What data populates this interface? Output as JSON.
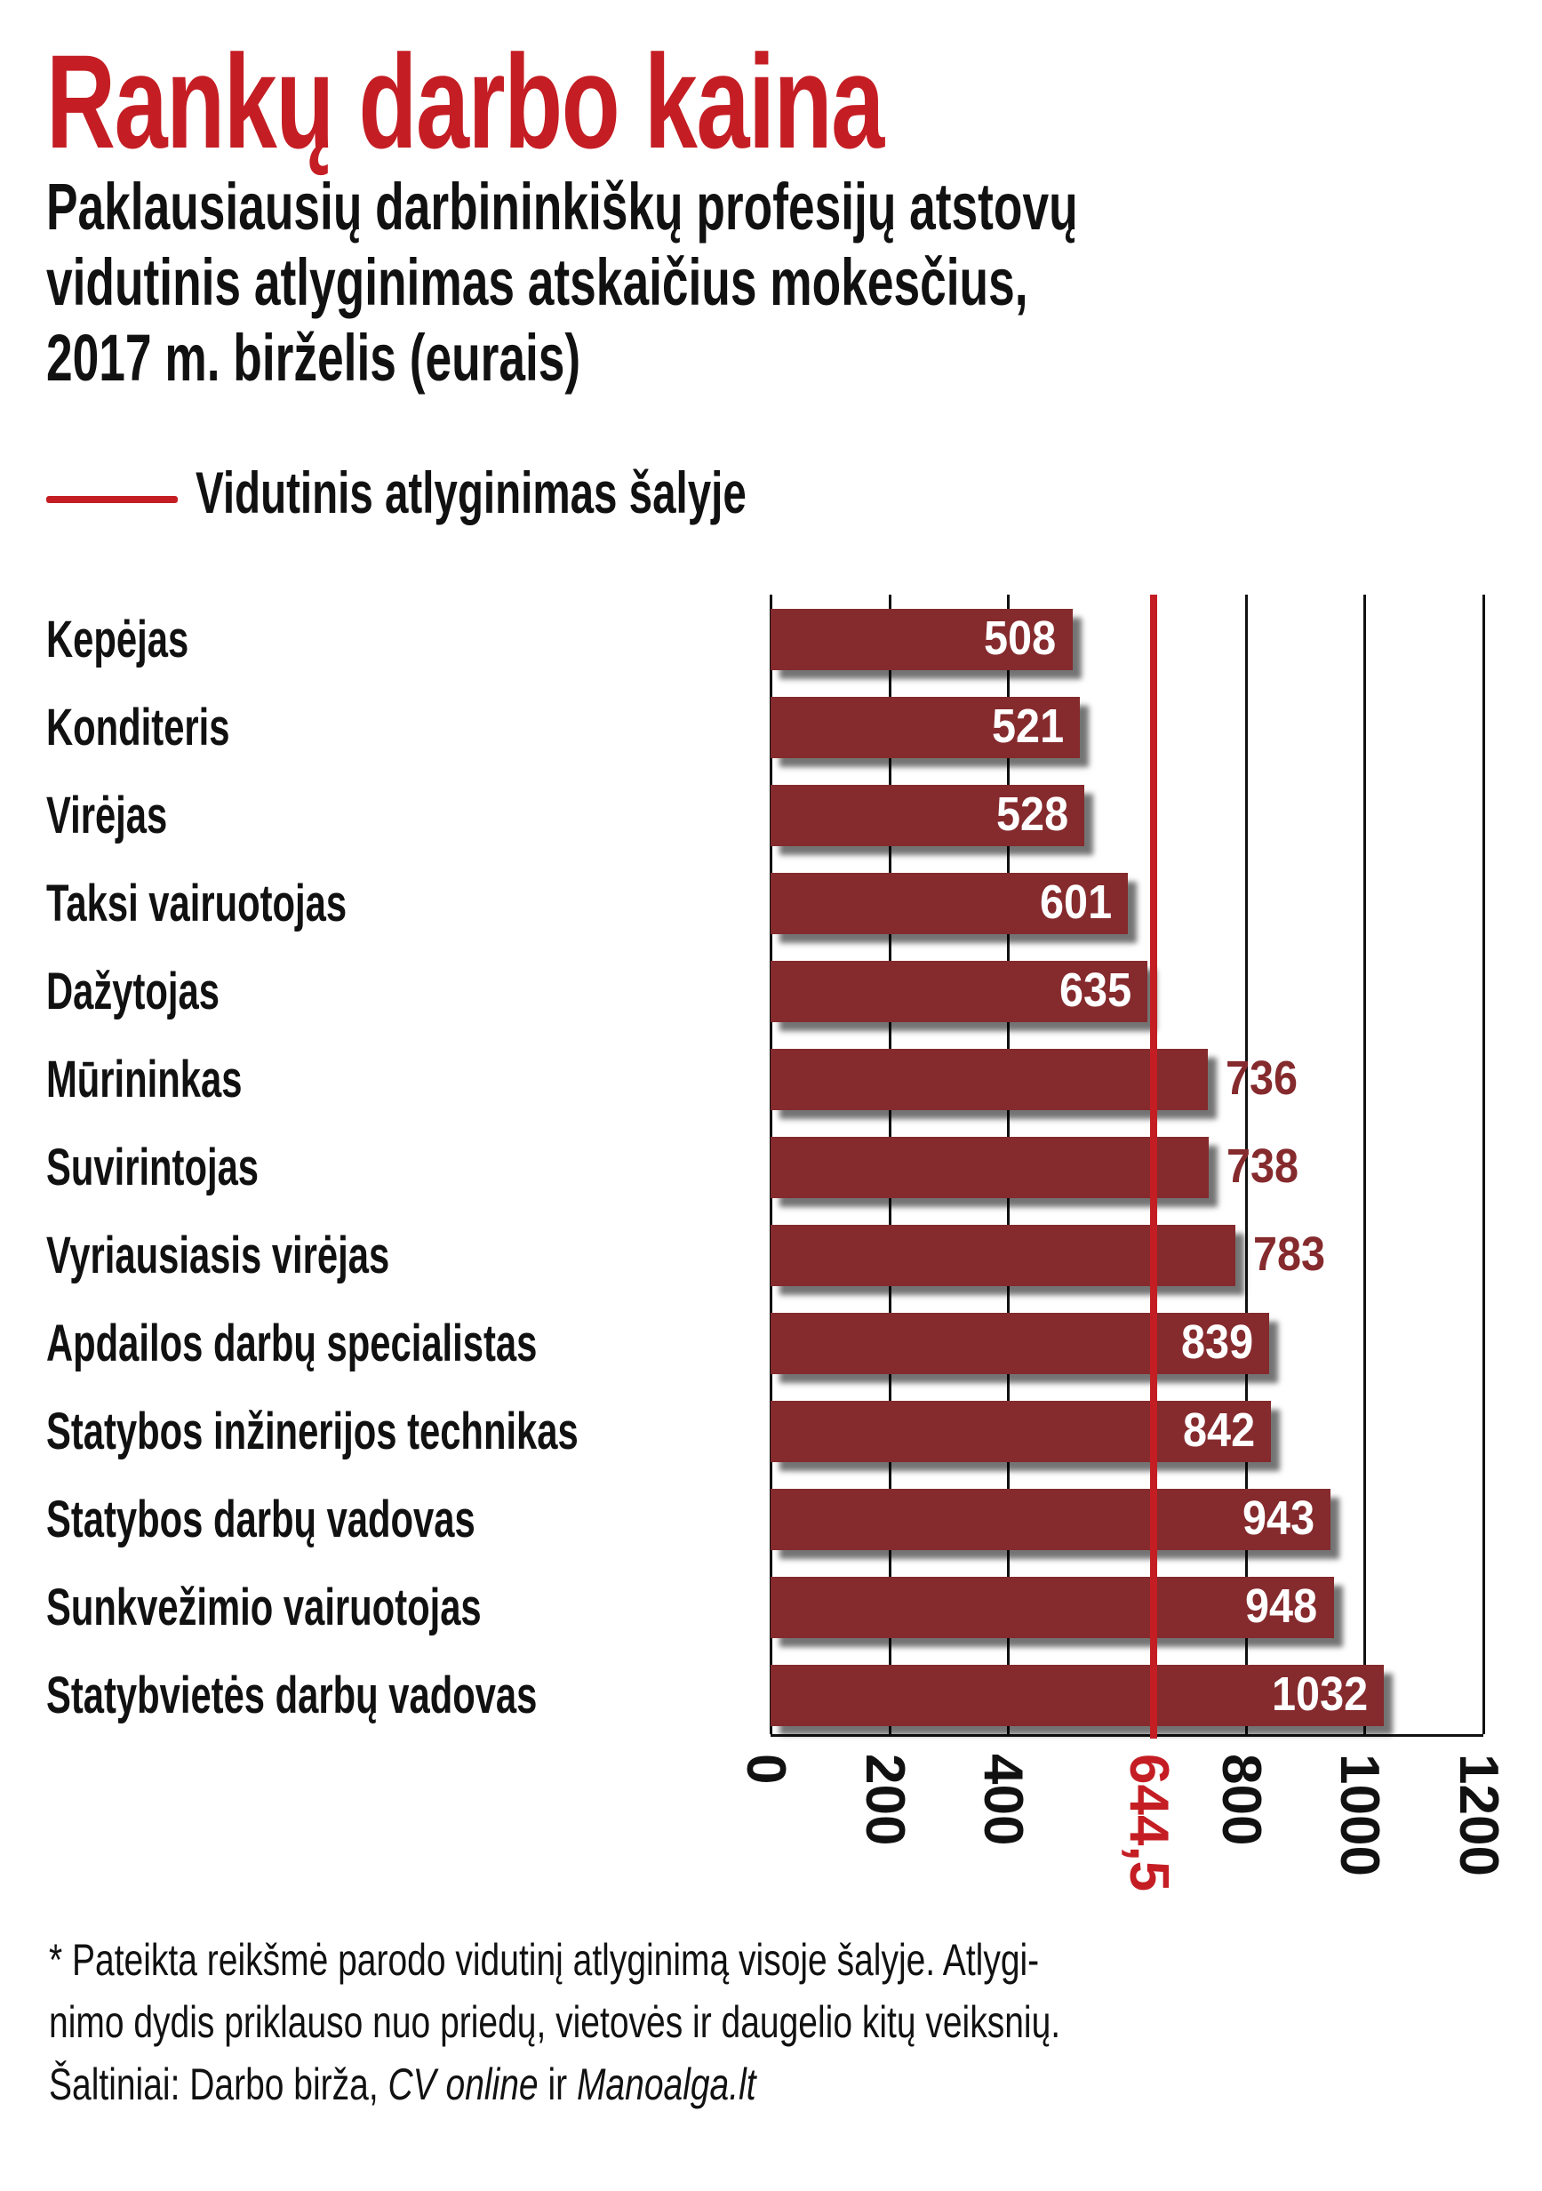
{
  "chart_data": {
    "type": "bar",
    "orientation": "horizontal",
    "title": "Rankų darbo kaina",
    "subtitle": [
      "Paklausiausių darbininkiškų profesijų atstovų",
      "vidutinis atlyginimas atskaičius mokesčius,",
      "2017 m. birželis (eurais)"
    ],
    "legend": "Vidutinis atlyginimas šalyje",
    "reference_line": {
      "value": 644.5,
      "label": "644,5",
      "color": "#c41e24"
    },
    "categories": [
      "Kepėjas",
      "Konditeris",
      "Virėjas",
      "Taksi vairuotojas",
      "Dažytojas",
      "Mūrininkas",
      "Suvirintojas",
      "Vyriausiasis virėjas",
      "Apdailos darbų specialistas",
      "Statybos inžinerijos technikas",
      "Statybos darbų vadovas",
      "Sunkvežimio vairuotojas",
      "Statybvietės darbų vadovas"
    ],
    "values": [
      508,
      521,
      528,
      601,
      635,
      736,
      738,
      783,
      839,
      842,
      943,
      948,
      1032
    ],
    "value_labels": [
      "508",
      "521",
      "528",
      "601",
      "635",
      "736",
      "738",
      "783",
      "839",
      "842",
      "943",
      "948",
      "1032"
    ],
    "xlim": [
      0,
      1200
    ],
    "ticks": [
      "0",
      "200",
      "400",
      "800",
      "1000",
      "1200"
    ],
    "tick_values": [
      0,
      200,
      400,
      800,
      1000,
      1200
    ],
    "grid": true,
    "bar_color": "#852a2d"
  },
  "footer": {
    "line1": "* Pateikta reikšmė parodo vidutinį atlyginimą visoje šalyje. Atlygi-",
    "line2": "nimo dydis priklauso nuo priedų, vietovės ir daugelio kitų veiksnių.",
    "line3_prefix": "Šaltiniai: Darbo birža, ",
    "line3_italic1": "CV online",
    "line3_mid": " ir ",
    "line3_italic2": "Manoalga.lt"
  }
}
